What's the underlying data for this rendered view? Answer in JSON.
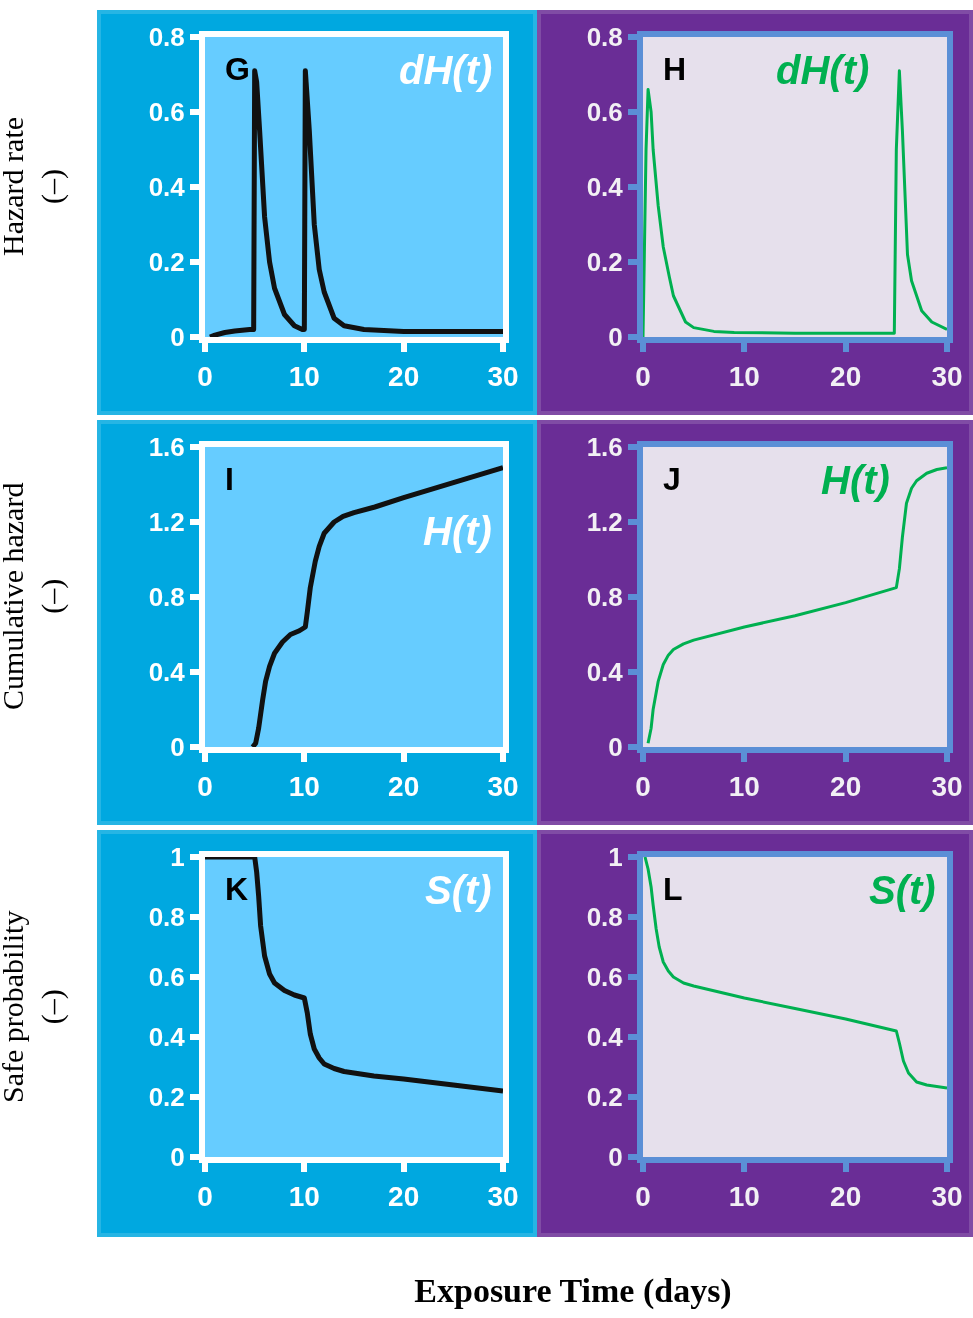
{
  "chart_data": [
    {
      "type": "line",
      "title": "G",
      "ylabel": "Hazard rate\n(–)",
      "annotations": [
        "dH(t)"
      ],
      "xlim": [
        0,
        30
      ],
      "xticks": [
        0,
        10,
        20,
        30
      ],
      "ylim": [
        0,
        0.8
      ],
      "yticks": [
        0,
        0.2,
        0.4,
        0.6,
        0.8
      ],
      "marker": "none",
      "line_style": "solid",
      "series": [
        {
          "color": "#111111",
          "x": [
            0.5,
            1,
            2,
            3,
            4.5,
            4.9,
            5.0,
            5.2,
            5.5,
            6,
            6.5,
            7,
            8,
            9,
            9.8,
            10.0,
            10.1,
            10.5,
            11,
            11.5,
            12,
            13,
            14,
            16,
            20,
            30
          ],
          "values": [
            0,
            0.005,
            0.012,
            0.016,
            0.02,
            0.02,
            0.71,
            0.68,
            0.55,
            0.32,
            0.2,
            0.13,
            0.06,
            0.03,
            0.02,
            0.02,
            0.71,
            0.55,
            0.3,
            0.18,
            0.12,
            0.05,
            0.03,
            0.02,
            0.015,
            0.015
          ]
        }
      ]
    },
    {
      "type": "line",
      "title": "H",
      "annotations": [
        "dH(t)"
      ],
      "xlim": [
        0,
        30
      ],
      "xticks": [
        0,
        10,
        20,
        30
      ],
      "ylim": [
        0,
        0.8
      ],
      "yticks": [
        0,
        0.2,
        0.4,
        0.6,
        0.8
      ],
      "marker": "none",
      "line_style": "solid",
      "series": [
        {
          "color": "#00b050",
          "x": [
            0,
            0.3,
            0.5,
            0.8,
            1,
            1.5,
            2,
            2.6,
            3,
            4.2,
            5,
            7,
            9,
            15,
            20,
            24.8,
            25.0,
            25.3,
            25.6,
            26.1,
            26.5,
            27.5,
            28.5,
            30
          ],
          "values": [
            0,
            0.5,
            0.66,
            0.6,
            0.5,
            0.35,
            0.24,
            0.16,
            0.11,
            0.04,
            0.025,
            0.015,
            0.012,
            0.01,
            0.01,
            0.01,
            0.5,
            0.71,
            0.55,
            0.22,
            0.15,
            0.07,
            0.04,
            0.02
          ]
        }
      ]
    },
    {
      "type": "line",
      "title": "I",
      "ylabel": "Cumulative hazard\n(–)",
      "annotations": [
        "H(t)"
      ],
      "xlim": [
        0,
        30
      ],
      "xticks": [
        0,
        10,
        20,
        30
      ],
      "ylim": [
        0,
        1.6
      ],
      "yticks": [
        0,
        0.4,
        0.8,
        1.2,
        1.6
      ],
      "marker": "none",
      "line_style": "solid",
      "series": [
        {
          "color": "#111111",
          "x": [
            4.8,
            5.1,
            5.4,
            5.8,
            6.1,
            6.5,
            7,
            7.8,
            8.6,
            9.5,
            10.1,
            10.3,
            10.6,
            11.1,
            11.5,
            12,
            13,
            13.9,
            15,
            17.1,
            20,
            25,
            30
          ],
          "values": [
            0,
            0.02,
            0.1,
            0.25,
            0.35,
            0.43,
            0.5,
            0.56,
            0.6,
            0.62,
            0.64,
            0.72,
            0.85,
            0.99,
            1.07,
            1.14,
            1.2,
            1.23,
            1.25,
            1.28,
            1.33,
            1.41,
            1.49
          ]
        }
      ]
    },
    {
      "type": "line",
      "title": "J",
      "annotations": [
        "H(t)"
      ],
      "xlim": [
        0,
        30
      ],
      "xticks": [
        0,
        10,
        20,
        30
      ],
      "ylim": [
        0,
        1.6
      ],
      "yticks": [
        0,
        0.4,
        0.8,
        1.2,
        1.6
      ],
      "marker": "none",
      "line_style": "solid",
      "series": [
        {
          "color": "#00b050",
          "x": [
            0.5,
            0.8,
            1,
            1.5,
            2,
            2.5,
            3,
            4,
            5,
            10,
            15,
            20,
            25,
            25.3,
            25.6,
            26,
            26.5,
            27,
            28,
            29,
            30
          ],
          "values": [
            0.02,
            0.1,
            0.2,
            0.35,
            0.44,
            0.49,
            0.52,
            0.55,
            0.57,
            0.64,
            0.7,
            0.77,
            0.85,
            0.95,
            1.12,
            1.3,
            1.38,
            1.42,
            1.46,
            1.48,
            1.49
          ]
        }
      ]
    },
    {
      "type": "line",
      "title": "K",
      "ylabel": "Safe probability\n(–)",
      "annotations": [
        "S(t)"
      ],
      "xlim": [
        0,
        30
      ],
      "xticks": [
        0,
        10,
        20,
        30
      ],
      "ylim": [
        0,
        1
      ],
      "yticks": [
        0,
        0.2,
        0.4,
        0.6,
        0.8,
        1
      ],
      "marker": "none",
      "line_style": "solid",
      "series": [
        {
          "color": "#111111",
          "x": [
            0,
            5,
            5.2,
            5.4,
            5.6,
            6,
            6.5,
            7,
            8,
            9,
            10,
            10.3,
            10.6,
            11,
            11.5,
            12,
            13,
            14,
            17,
            20,
            25,
            30
          ],
          "values": [
            1,
            1,
            0.95,
            0.87,
            0.77,
            0.67,
            0.61,
            0.58,
            0.555,
            0.54,
            0.53,
            0.48,
            0.41,
            0.36,
            0.33,
            0.31,
            0.295,
            0.285,
            0.27,
            0.26,
            0.24,
            0.22
          ]
        }
      ]
    },
    {
      "type": "line",
      "title": "L",
      "xlabel": "Exposure Time (days)",
      "annotations": [
        "S(t)"
      ],
      "xlim": [
        0,
        30
      ],
      "xticks": [
        0,
        10,
        20,
        30
      ],
      "ylim": [
        0,
        1
      ],
      "yticks": [
        0,
        0.2,
        0.4,
        0.6,
        0.8,
        1
      ],
      "marker": "none",
      "line_style": "solid",
      "series": [
        {
          "color": "#00b050",
          "x": [
            0.2,
            0.5,
            0.8,
            1,
            1.3,
            1.6,
            2,
            2.5,
            3,
            4,
            5,
            10,
            15,
            20,
            25,
            25.3,
            25.7,
            26.2,
            27,
            28,
            30
          ],
          "values": [
            1,
            0.96,
            0.9,
            0.84,
            0.76,
            0.7,
            0.65,
            0.62,
            0.6,
            0.58,
            0.57,
            0.53,
            0.495,
            0.46,
            0.42,
            0.38,
            0.32,
            0.28,
            0.25,
            0.24,
            0.23
          ]
        }
      ]
    }
  ]
}
